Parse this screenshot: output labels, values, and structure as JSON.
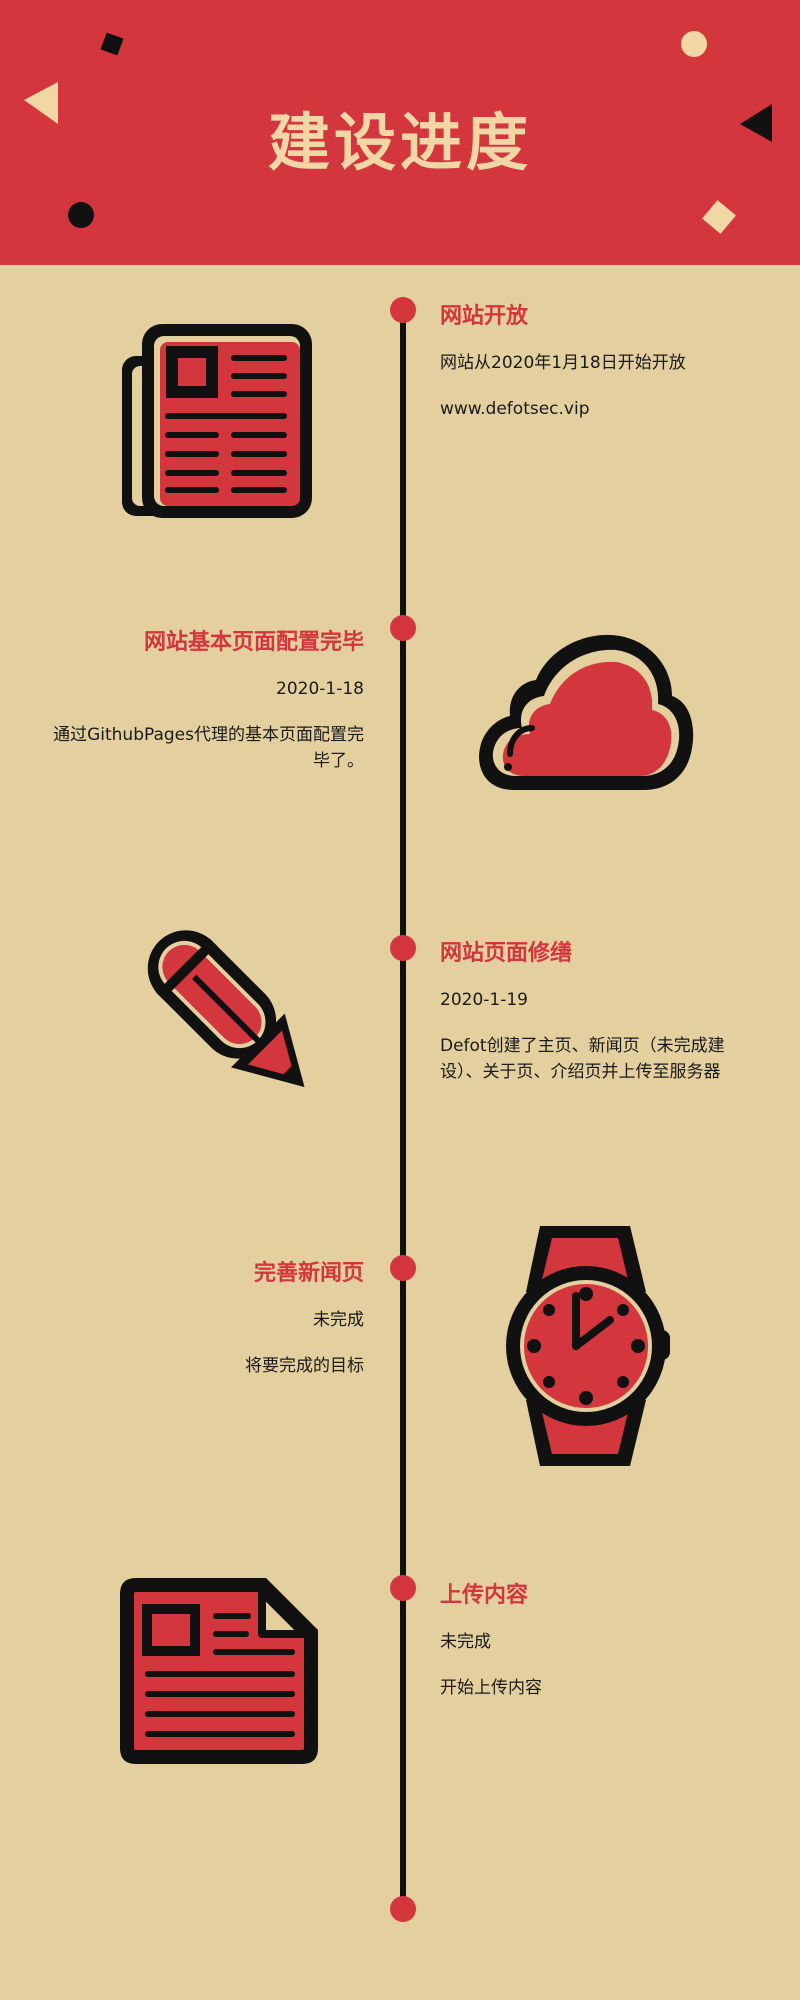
{
  "page_title": "建设进度",
  "colors": {
    "primary": "#d3363d",
    "background": "#e4cf9f",
    "accent": "#f1d6a6",
    "ink": "#111111"
  },
  "timeline": [
    {
      "title": "网站开放",
      "lines": [
        "网站从2020年1月18日开始开放",
        "www.defotsec.vip"
      ],
      "icon": "newspaper-icon"
    },
    {
      "title": "网站基本页面配置完毕",
      "lines": [
        "2020-1-18",
        "通过GithubPages代理的基本页面配置完毕了。"
      ],
      "icon": "cloud-icon"
    },
    {
      "title": "网站页面修缮",
      "lines": [
        "2020-1-19",
        "Defot创建了主页、新闻页（未完成建设）、关于页、介绍页并上传至服务器"
      ],
      "icon": "pencil-icon"
    },
    {
      "title": "完善新闻页",
      "lines": [
        "未完成",
        "将要完成的目标"
      ],
      "icon": "watch-icon"
    },
    {
      "title": "上传内容",
      "lines": [
        "未完成",
        "开始上传内容"
      ],
      "icon": "document-icon"
    }
  ]
}
